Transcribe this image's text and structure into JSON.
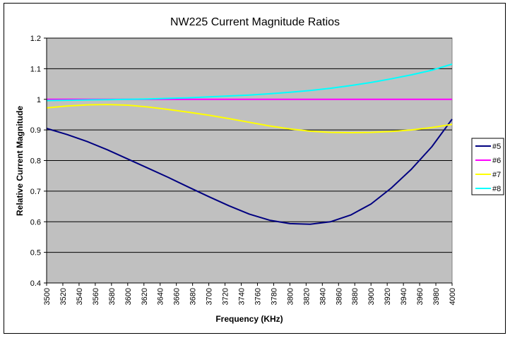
{
  "chart_data": {
    "type": "line",
    "title": "NW225 Current Magnitude Ratios",
    "xlabel": "Frequency (KHz)",
    "ylabel": "Relative Current Magnitude",
    "xlim": [
      3500,
      4000
    ],
    "ylim": [
      0.4,
      1.2
    ],
    "x_ticks": [
      3500,
      3520,
      3540,
      3560,
      3580,
      3600,
      3620,
      3640,
      3660,
      3680,
      3700,
      3720,
      3740,
      3760,
      3780,
      3800,
      3820,
      3840,
      3860,
      3880,
      3900,
      3920,
      3940,
      3960,
      3980,
      4000
    ],
    "y_ticks": [
      0.4,
      0.5,
      0.6,
      0.7,
      0.8,
      0.9,
      1,
      1.1,
      1.2
    ],
    "y_tick_labels": [
      "0.4",
      "0.5",
      "0.6",
      "0.7",
      "0.8",
      "0.9",
      "1",
      "1.1",
      "1.2"
    ],
    "grid": "horizontal",
    "plot_background": "#c0c0c0",
    "legend_position": "right",
    "x": [
      3500,
      3525,
      3550,
      3575,
      3600,
      3625,
      3650,
      3675,
      3700,
      3725,
      3750,
      3775,
      3800,
      3825,
      3850,
      3875,
      3900,
      3925,
      3950,
      3975,
      4000
    ],
    "series": [
      {
        "name": "#5",
        "color": "#000080",
        "values": [
          0.905,
          0.885,
          0.862,
          0.835,
          0.805,
          0.775,
          0.745,
          0.713,
          0.682,
          0.652,
          0.625,
          0.605,
          0.594,
          0.592,
          0.6,
          0.622,
          0.658,
          0.71,
          0.772,
          0.845,
          0.935
        ]
      },
      {
        "name": "#6",
        "color": "#ff00ff",
        "values": [
          1,
          1,
          1,
          1,
          1,
          1,
          1,
          1,
          1,
          1,
          1,
          1,
          1,
          1,
          1,
          1,
          1,
          1,
          1,
          1,
          1
        ]
      },
      {
        "name": "#7",
        "color": "#ffff00",
        "values": [
          0.972,
          0.978,
          0.982,
          0.983,
          0.981,
          0.975,
          0.967,
          0.958,
          0.948,
          0.937,
          0.925,
          0.913,
          0.903,
          0.896,
          0.892,
          0.891,
          0.892,
          0.895,
          0.9,
          0.908,
          0.918
        ]
      },
      {
        "name": "#8",
        "color": "#00ffff",
        "values": [
          0.996,
          0.997,
          0.998,
          0.999,
          1.0,
          1.001,
          1.003,
          1.005,
          1.008,
          1.011,
          1.014,
          1.018,
          1.023,
          1.029,
          1.036,
          1.045,
          1.055,
          1.067,
          1.08,
          1.095,
          1.115
        ]
      }
    ]
  }
}
